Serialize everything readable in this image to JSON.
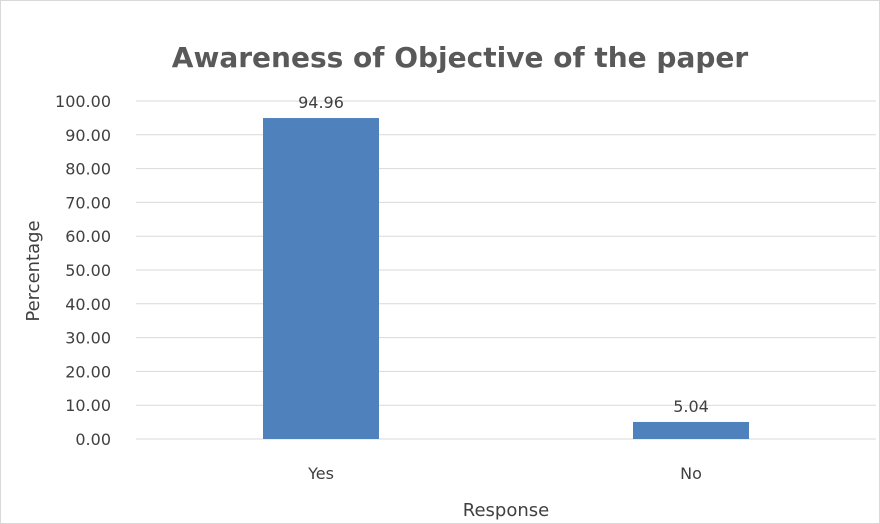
{
  "chart_data": {
    "type": "bar",
    "title": "Awareness of Objective of the paper",
    "xlabel": "Response",
    "ylabel": "Percentage",
    "categories": [
      "Yes",
      "No"
    ],
    "values": [
      94.96,
      5.04
    ],
    "data_labels": [
      "94.96",
      "5.04"
    ],
    "ylim": [
      0,
      100
    ],
    "yticks": [
      "0.00",
      "10.00",
      "20.00",
      "30.00",
      "40.00",
      "50.00",
      "60.00",
      "70.00",
      "80.00",
      "90.00",
      "100.00"
    ],
    "grid": true,
    "legend": "none",
    "bar_color": "#4f81bd",
    "grid_color": "#d9d9d9"
  }
}
